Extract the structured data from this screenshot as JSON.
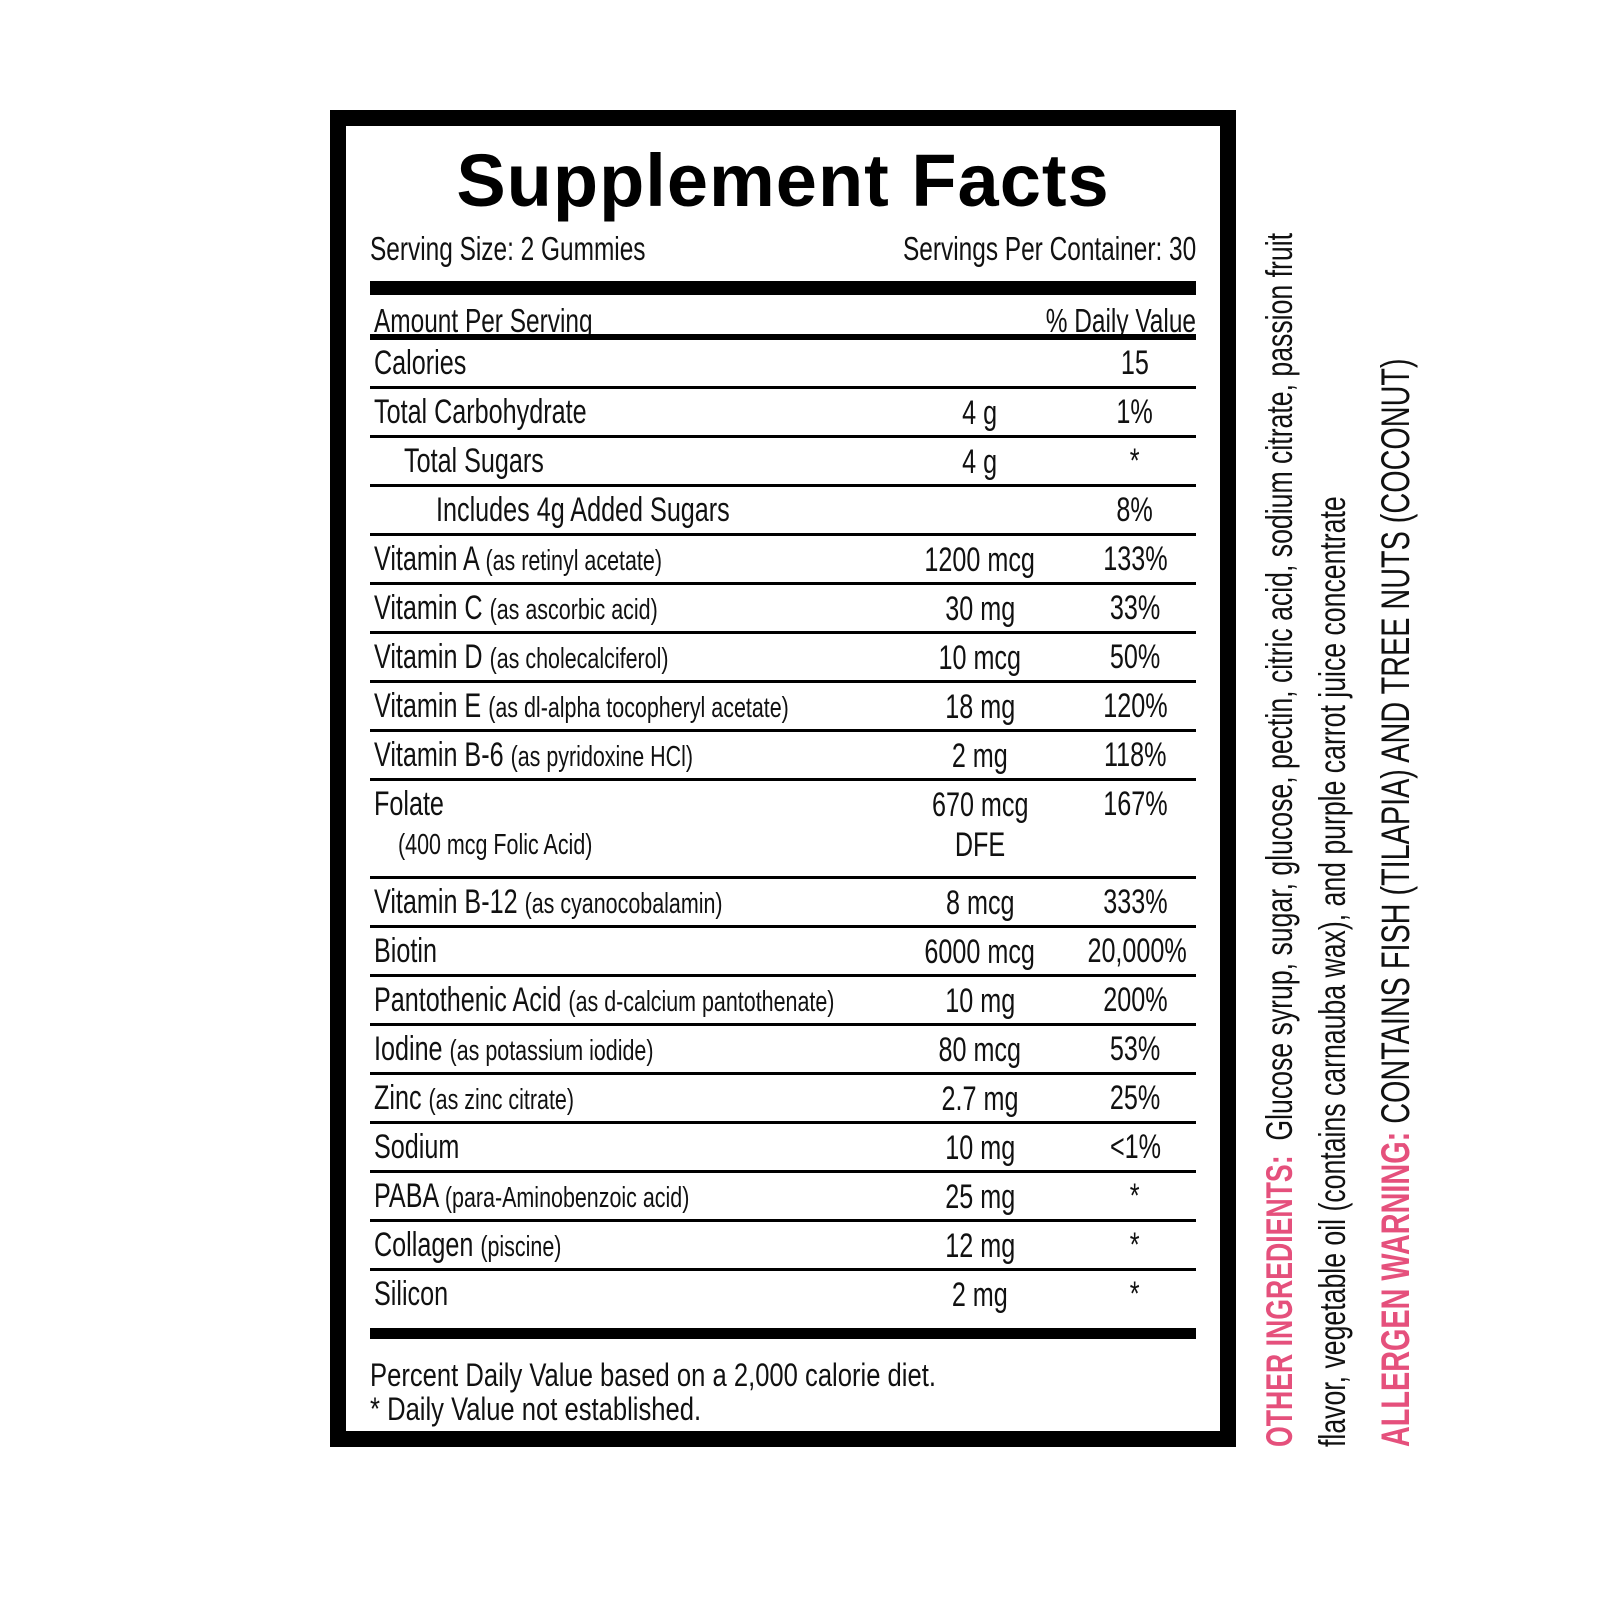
{
  "title": "Supplement Facts",
  "serving_size": "Serving Size: 2 Gummies",
  "servings_per_container": "Servings Per Container: 30",
  "amount_per_serving": "Amount Per Serving",
  "daily_value_header": "% Daily Value",
  "rows": [
    {
      "name": "Calories",
      "sub": "",
      "amount": "",
      "dv": "15",
      "indent": 0
    },
    {
      "name": "Total Carbohydrate",
      "sub": "",
      "amount": "4 g",
      "dv": "1%",
      "indent": 0
    },
    {
      "name": "Total Sugars",
      "sub": "",
      "amount": "4 g",
      "dv": "*",
      "indent": 1
    },
    {
      "name": "Includes 4g Added Sugars",
      "sub": "",
      "amount": "",
      "dv": "8%",
      "indent": 2
    },
    {
      "name": "Vitamin A",
      "sub": "(as retinyl acetate)",
      "amount": "1200 mcg",
      "dv": "133%",
      "indent": 0
    },
    {
      "name": "Vitamin C",
      "sub": "(as ascorbic acid)",
      "amount": "30 mg",
      "dv": "33%",
      "indent": 0
    },
    {
      "name": "Vitamin D",
      "sub": "(as cholecalciferol)",
      "amount": "10 mcg",
      "dv": "50%",
      "indent": 0
    },
    {
      "name": "Vitamin E",
      "sub": "(as dl-alpha tocopheryl acetate)",
      "amount": "18 mg",
      "dv": "120%",
      "indent": 0
    },
    {
      "name": "Vitamin B-6",
      "sub": "(as pyridoxine HCl)",
      "amount": "2 mg",
      "dv": "118%",
      "indent": 0
    },
    {
      "name": "Folate",
      "sub": "(400 mcg Folic Acid)",
      "amount": "670 mcg",
      "amount2": "DFE",
      "dv": "167%",
      "indent": 0,
      "tall": true
    },
    {
      "name": "Vitamin B-12",
      "sub": "(as cyanocobalamin)",
      "amount": "8 mcg",
      "dv": "333%",
      "indent": 0
    },
    {
      "name": "Biotin",
      "sub": "",
      "amount": "6000 mcg",
      "dv": "20,000%",
      "indent": 0
    },
    {
      "name": "Pantothenic Acid",
      "sub": "(as d-calcium pantothenate)",
      "amount": "10 mg",
      "dv": "200%",
      "indent": 0
    },
    {
      "name": "Iodine",
      "sub": "(as potassium iodide)",
      "amount": "80 mcg",
      "dv": "53%",
      "indent": 0
    },
    {
      "name": "Zinc",
      "sub": "(as zinc citrate)",
      "amount": "2.7 mg",
      "dv": "25%",
      "indent": 0
    },
    {
      "name": "Sodium",
      "sub": "",
      "amount": "10 mg",
      "dv": "<1%",
      "indent": 0
    },
    {
      "name": "PABA",
      "sub": "(para-Aminobenzoic acid)",
      "amount": "25 mg",
      "dv": "*",
      "indent": 0
    },
    {
      "name": "Collagen",
      "sub": "(piscine)",
      "amount": "12 mg",
      "dv": "*",
      "indent": 0
    },
    {
      "name": "Silicon",
      "sub": "",
      "amount": "2 mg",
      "dv": "*",
      "indent": 0
    }
  ],
  "footnote_1": "Percent Daily Value based on a 2,000 calorie diet.",
  "footnote_2": "* Daily Value not established.",
  "other_ingredients": {
    "label": "OTHER INGREDIENTS:",
    "line1": "Glucose syrup, sugar, glucose, pectin, citric acid, sodium citrate, passion fruit",
    "line2": "flavor, vegetable oil (contains carnauba wax), and purple carrot juice concentrate"
  },
  "allergen": {
    "label": "ALLERGEN WARNING:",
    "text": "CONTAINS FISH (TILAPIA) AND TREE NUTS (COCONUT)"
  },
  "colors": {
    "accent": "#e5507c",
    "border": "#000000"
  }
}
